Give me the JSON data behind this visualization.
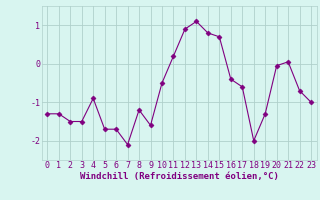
{
  "x": [
    0,
    1,
    2,
    3,
    4,
    5,
    6,
    7,
    8,
    9,
    10,
    11,
    12,
    13,
    14,
    15,
    16,
    17,
    18,
    19,
    20,
    21,
    22,
    23
  ],
  "y": [
    -1.3,
    -1.3,
    -1.5,
    -1.5,
    -0.9,
    -1.7,
    -1.7,
    -2.1,
    -1.2,
    -1.6,
    -0.5,
    0.2,
    0.9,
    1.1,
    0.8,
    0.7,
    -0.4,
    -0.6,
    -2.0,
    -1.3,
    -0.05,
    0.05,
    -0.7,
    -1.0
  ],
  "line_color": "#800080",
  "marker": "D",
  "marker_size": 2.5,
  "bg_color": "#d8f5f0",
  "grid_color": "#b0d0cb",
  "tick_color": "#800080",
  "xlabel": "Windchill (Refroidissement éolien,°C)",
  "xlabel_color": "#800080",
  "ylim": [
    -2.5,
    1.5
  ],
  "yticks": [
    -2,
    -1,
    0,
    1
  ],
  "axis_fontsize": 6.5,
  "tick_fontsize": 6.0
}
